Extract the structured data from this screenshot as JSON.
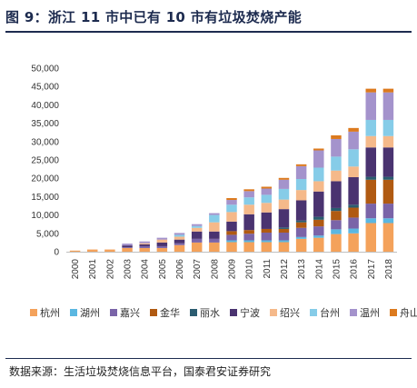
{
  "title": "图 9：浙江 11 市中已有 10 市有垃圾焚烧产能",
  "source": "数据来源：生活垃圾焚烧信息平台，国泰君安证券研究",
  "chart_data": {
    "type": "bar",
    "stacked": true,
    "categories": [
      "2000",
      "2001",
      "2002",
      "2003",
      "2004",
      "2005",
      "2006",
      "2007",
      "2008",
      "2009",
      "2010",
      "2011",
      "2012",
      "2013",
      "2014",
      "2015",
      "2016",
      "2017",
      "2018"
    ],
    "ylim": [
      0,
      50000
    ],
    "yticks": [
      0,
      5000,
      10000,
      15000,
      20000,
      25000,
      30000,
      35000,
      40000,
      45000,
      50000
    ],
    "ytick_labels": [
      "0",
      "5,000",
      "10,000",
      "15,000",
      "20,000",
      "25,000",
      "30,000",
      "35,000",
      "40,000",
      "45,000",
      "50,000"
    ],
    "grid": false,
    "legend_position": "bottom",
    "series": [
      {
        "name": "杭州",
        "color": "#F4A25B",
        "values": [
          300,
          600,
          600,
          1000,
          1000,
          1000,
          1800,
          2500,
          2500,
          2600,
          2600,
          2600,
          2600,
          3500,
          3800,
          4800,
          5000,
          7800,
          7800
        ]
      },
      {
        "name": "湖州",
        "color": "#5BB7E1",
        "values": [
          0,
          0,
          0,
          0,
          0,
          0,
          0,
          0,
          0,
          500,
          500,
          500,
          500,
          500,
          600,
          1300,
          1300,
          1300,
          1300
        ]
      },
      {
        "name": "嘉兴",
        "color": "#7A64A8",
        "values": [
          0,
          0,
          0,
          200,
          500,
          500,
          500,
          1000,
          1000,
          1500,
          1800,
          2100,
          2100,
          2500,
          2500,
          2500,
          3000,
          4000,
          4000
        ]
      },
      {
        "name": "金华",
        "color": "#B05A12",
        "values": [
          0,
          0,
          0,
          0,
          0,
          0,
          0,
          0,
          0,
          1000,
          1000,
          1000,
          1000,
          1500,
          1800,
          2500,
          2700,
          6500,
          6500
        ]
      },
      {
        "name": "丽水",
        "color": "#2B5C70",
        "values": [
          0,
          0,
          0,
          0,
          0,
          0,
          0,
          0,
          0,
          0,
          0,
          0,
          400,
          500,
          800,
          800,
          800,
          800,
          800
        ]
      },
      {
        "name": "宁波",
        "color": "#4A3370",
        "values": [
          0,
          0,
          0,
          500,
          500,
          1000,
          1000,
          2000,
          2000,
          2600,
          4300,
          4500,
          5000,
          5500,
          6900,
          7300,
          7500,
          8000,
          8000
        ]
      },
      {
        "name": "绍兴",
        "color": "#F5B98A",
        "values": [
          0,
          0,
          0,
          0,
          300,
          800,
          800,
          1000,
          2500,
          2600,
          2600,
          2600,
          2600,
          2800,
          2800,
          2900,
          2900,
          3100,
          3100
        ]
      },
      {
        "name": "台州",
        "color": "#86CCE8",
        "values": [
          0,
          0,
          0,
          0,
          0,
          0,
          500,
          500,
          2000,
          2000,
          2000,
          2200,
          2900,
          3000,
          3700,
          3800,
          4700,
          4400,
          4400
        ]
      },
      {
        "name": "温州",
        "color": "#A493CC",
        "values": [
          0,
          0,
          0,
          500,
          500,
          500,
          500,
          500,
          500,
          1300,
          1700,
          1700,
          2500,
          3500,
          4700,
          4800,
          4800,
          7500,
          7500
        ]
      },
      {
        "name": "舟山",
        "color": "#DC7A1E",
        "values": [
          0,
          0,
          0,
          0,
          0,
          0,
          0,
          0,
          0,
          500,
          500,
          500,
          500,
          500,
          500,
          1000,
          1000,
          1000,
          1000
        ]
      }
    ]
  }
}
